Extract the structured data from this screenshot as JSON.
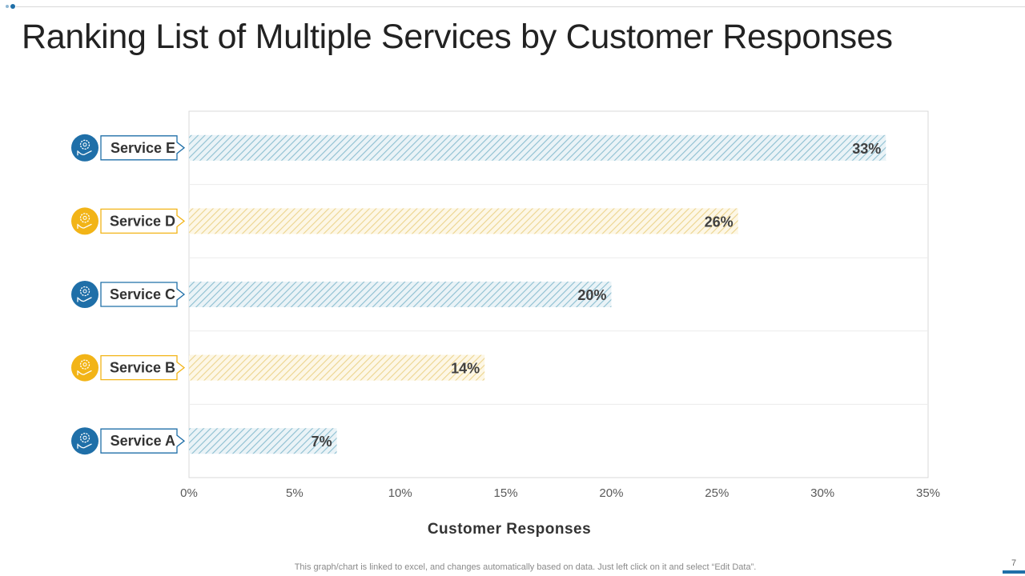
{
  "slide": {
    "title": "Ranking List of Multiple Services by Customer Responses",
    "footnote": "This graph/chart is linked to excel, and changes automatically based on data. Just left click on it and select “Edit Data”.",
    "page_number": "7"
  },
  "colors": {
    "blue": "#1f6fa8",
    "gold": "#f2b417",
    "blue_bar": "#a9cedb",
    "gold_bar": "#f3dfa6"
  },
  "chart_data": {
    "type": "bar",
    "orientation": "horizontal",
    "title": "",
    "xlabel": "Customer Responses",
    "ylabel": "",
    "xlim": [
      0,
      35
    ],
    "x_ticks": [
      "0%",
      "5%",
      "10%",
      "15%",
      "20%",
      "25%",
      "30%",
      "35%"
    ],
    "categories": [
      "Service E",
      "Service D",
      "Service C",
      "Service B",
      "Service A"
    ],
    "values": [
      33,
      26,
      20,
      14,
      7
    ],
    "value_labels": [
      "33%",
      "26%",
      "20%",
      "14%",
      "7%"
    ],
    "category_colors": [
      "blue",
      "gold",
      "blue",
      "gold",
      "blue"
    ],
    "category_icons": [
      "gear-hand-icon",
      "gear-hand-icon",
      "gear-hand-icon",
      "gear-hand-icon",
      "gear-hand-icon"
    ]
  }
}
